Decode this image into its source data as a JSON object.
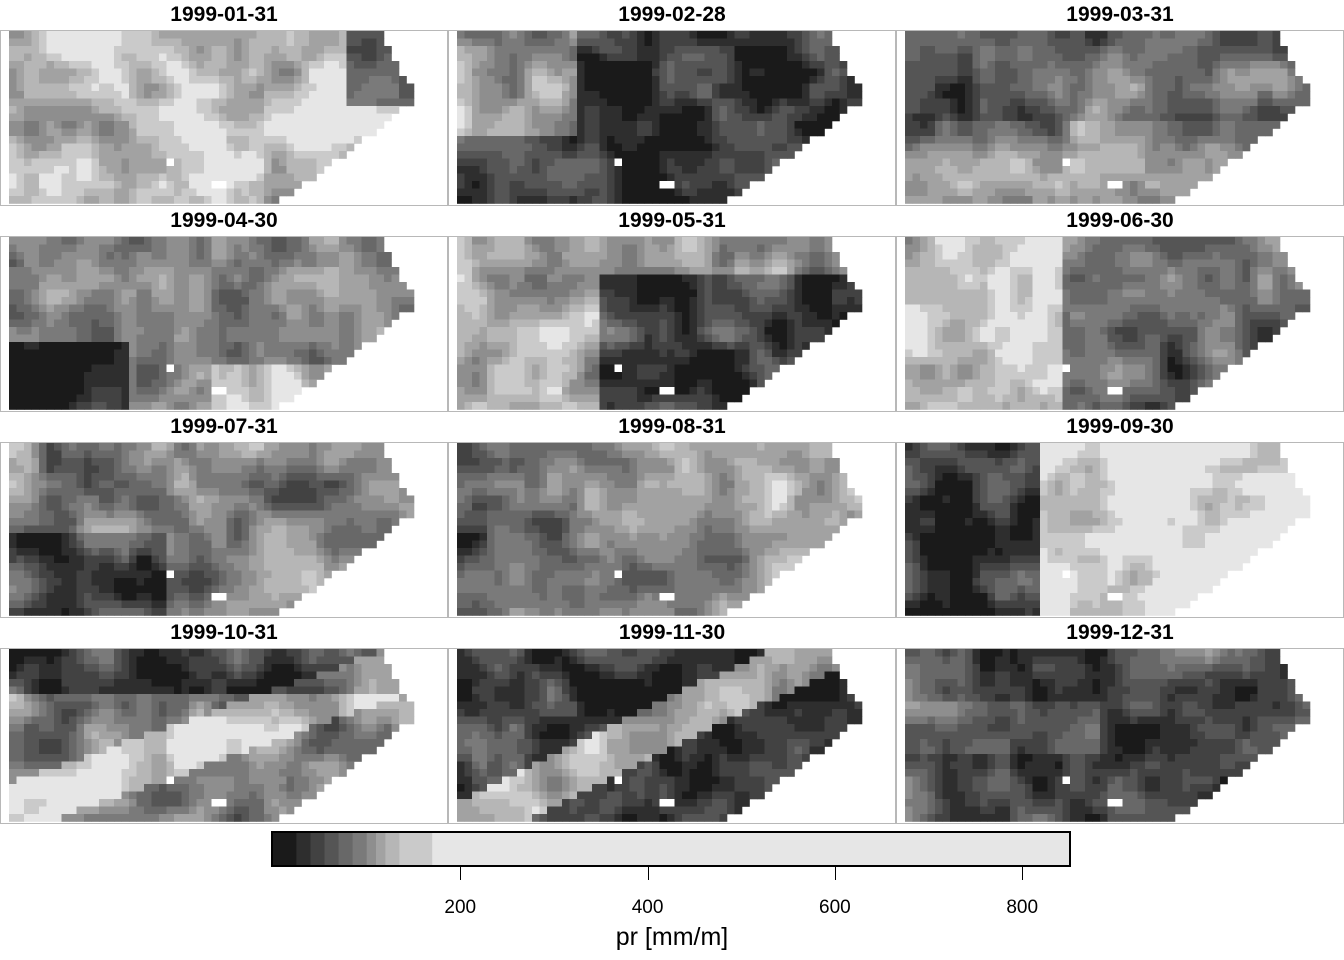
{
  "chart_data": {
    "type": "heatmap",
    "layout": "3 columns x 4 rows of map panels",
    "color_scale": "grayscale, dark = low, light = high",
    "panels": [
      {
        "title": "1999-01-31",
        "dominant_tone": "light",
        "pattern": "mostly light, darker patch at east edge"
      },
      {
        "title": "1999-02-28",
        "dominant_tone": "dark",
        "pattern": "mostly dark with light patches in northwest"
      },
      {
        "title": "1999-03-31",
        "dominant_tone": "mixed",
        "pattern": "mixed gray, dark patches center-north"
      },
      {
        "title": "1999-04-30",
        "dominant_tone": "mixed",
        "pattern": "gray, dark southwest corner, light southeast"
      },
      {
        "title": "1999-05-31",
        "dominant_tone": "dark",
        "pattern": "dark center, light north and west"
      },
      {
        "title": "1999-06-30",
        "dominant_tone": "mixed",
        "pattern": "light west, darker northeast"
      },
      {
        "title": "1999-07-31",
        "dominant_tone": "mixed",
        "pattern": "mottled gray, dark spots southwest"
      },
      {
        "title": "1999-08-31",
        "dominant_tone": "mixed",
        "pattern": "dark west, lighter east"
      },
      {
        "title": "1999-09-30",
        "dominant_tone": "light",
        "pattern": "dark west third, uniformly light east"
      },
      {
        "title": "1999-10-31",
        "dominant_tone": "mixed",
        "pattern": "dark north band and southwest, light diagonal band"
      },
      {
        "title": "1999-11-30",
        "dominant_tone": "dark",
        "pattern": "light diagonal band northwest, dark southeast"
      },
      {
        "title": "1999-12-31",
        "dominant_tone": "dark",
        "pattern": "dark overall with mid-gray mottling"
      }
    ],
    "legend": {
      "title": "pr [mm/m]",
      "ticks": [
        200,
        400,
        600,
        800
      ],
      "range": [
        0,
        850
      ],
      "breaks": [
        0,
        25,
        40,
        55,
        70,
        85,
        100,
        110,
        120,
        135,
        170,
        850
      ]
    }
  },
  "colors": {
    "legend_fills": [
      "#1a1a1a",
      "#2e2e2e",
      "#424242",
      "#555555",
      "#686868",
      "#7a7a7a",
      "#8e8e8e",
      "#a2a2a2",
      "#b6b6b6",
      "#cacaca",
      "#e6e6e6"
    ],
    "frame": "#b8b8b8",
    "background": "#ffffff"
  }
}
